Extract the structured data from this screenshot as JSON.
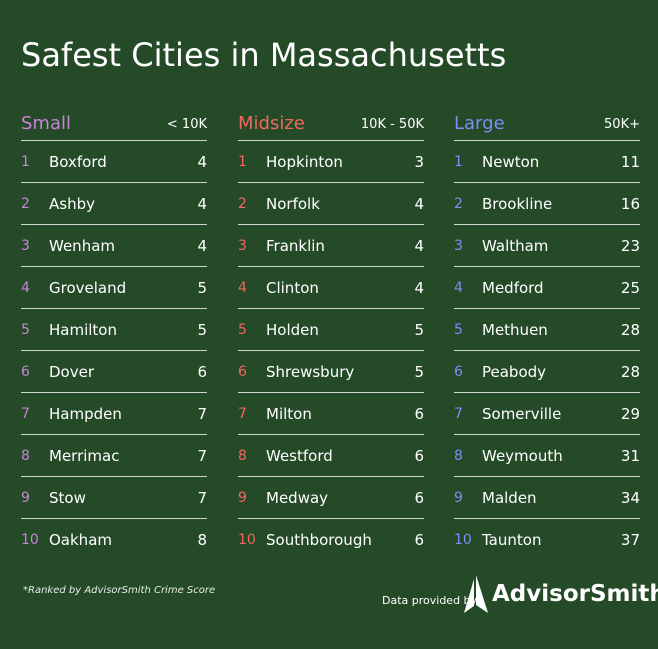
{
  "title": "Safest Cities in Massachusetts",
  "colors": {
    "background": "#254a28",
    "small_accent": "#c685d6",
    "midsize_accent": "#f0685e",
    "large_accent": "#7c8ef5",
    "divider": "#cfd8cf"
  },
  "columns": [
    {
      "name": "Small",
      "range": "< 10K",
      "rows": [
        {
          "rank": "1",
          "city": "Boxford",
          "score": "4"
        },
        {
          "rank": "2",
          "city": "Ashby",
          "score": "4"
        },
        {
          "rank": "3",
          "city": "Wenham",
          "score": "4"
        },
        {
          "rank": "4",
          "city": "Groveland",
          "score": "5"
        },
        {
          "rank": "5",
          "city": "Hamilton",
          "score": "5"
        },
        {
          "rank": "6",
          "city": "Dover",
          "score": "6"
        },
        {
          "rank": "7",
          "city": "Hampden",
          "score": "7"
        },
        {
          "rank": "8",
          "city": "Merrimac",
          "score": "7"
        },
        {
          "rank": "9",
          "city": "Stow",
          "score": "7"
        },
        {
          "rank": "10",
          "city": "Oakham",
          "score": "8"
        }
      ]
    },
    {
      "name": "Midsize",
      "range": "10K - 50K",
      "rows": [
        {
          "rank": "1",
          "city": "Hopkinton",
          "score": "3"
        },
        {
          "rank": "2",
          "city": "Norfolk",
          "score": "4"
        },
        {
          "rank": "3",
          "city": "Franklin",
          "score": "4"
        },
        {
          "rank": "4",
          "city": "Clinton",
          "score": "4"
        },
        {
          "rank": "5",
          "city": "Holden",
          "score": "5"
        },
        {
          "rank": "6",
          "city": "Shrewsbury",
          "score": "5"
        },
        {
          "rank": "7",
          "city": "Milton",
          "score": "6"
        },
        {
          "rank": "8",
          "city": "Westford",
          "score": "6"
        },
        {
          "rank": "9",
          "city": "Medway",
          "score": "6"
        },
        {
          "rank": "10",
          "city": "Southborough",
          "score": "6"
        }
      ]
    },
    {
      "name": "Large",
      "range": "50K+",
      "rows": [
        {
          "rank": "1",
          "city": "Newton",
          "score": "11"
        },
        {
          "rank": "2",
          "city": "Brookline",
          "score": "16"
        },
        {
          "rank": "3",
          "city": "Waltham",
          "score": "23"
        },
        {
          "rank": "4",
          "city": "Medford",
          "score": "25"
        },
        {
          "rank": "5",
          "city": "Methuen",
          "score": "28"
        },
        {
          "rank": "6",
          "city": "Peabody",
          "score": "28"
        },
        {
          "rank": "7",
          "city": "Somerville",
          "score": "29"
        },
        {
          "rank": "8",
          "city": "Weymouth",
          "score": "31"
        },
        {
          "rank": "9",
          "city": "Malden",
          "score": "34"
        },
        {
          "rank": "10",
          "city": "Taunton",
          "score": "37"
        }
      ]
    }
  ],
  "footnote": "*Ranked by AdvisorSmith Crime Score",
  "credit": "Data provided by",
  "brand": {
    "name": "AdvisorSmith",
    "icon": "advisorsmith-logo-icon"
  }
}
